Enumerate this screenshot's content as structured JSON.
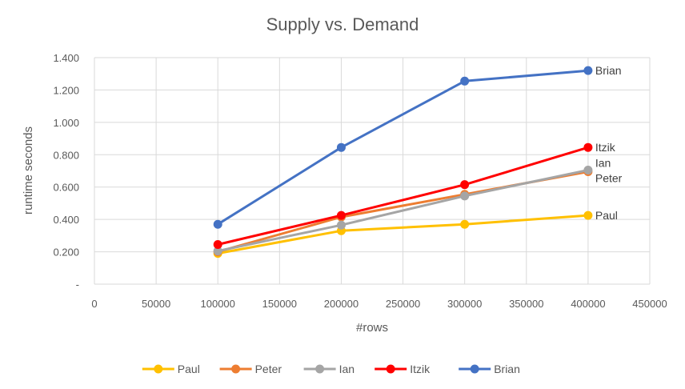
{
  "chart_data": {
    "type": "line",
    "title": "Supply vs. Demand",
    "xlabel": "#rows",
    "ylabel": "runtime seconds",
    "xlim": [
      0,
      450000
    ],
    "ylim": [
      0,
      1.4
    ],
    "x_ticks": [
      "0",
      "50000",
      "100000",
      "150000",
      "200000",
      "250000",
      "300000",
      "350000",
      "400000",
      "450000"
    ],
    "y_ticks": [
      "-",
      "0.200",
      "0.400",
      "0.600",
      "0.800",
      "1.000",
      "1.200",
      "1.400"
    ],
    "grid": true,
    "legend_position": "bottom",
    "x": [
      100000,
      200000,
      300000,
      400000
    ],
    "series": [
      {
        "name": "Paul",
        "color": "#FFC000",
        "values": [
          0.19,
          0.33,
          0.37,
          0.425
        ],
        "end_label": "Paul"
      },
      {
        "name": "Peter",
        "color": "#ED7D31",
        "values": [
          0.2,
          0.415,
          0.555,
          0.695
        ],
        "end_label": "Peter"
      },
      {
        "name": "Ian",
        "color": "#A5A5A5",
        "values": [
          0.205,
          0.365,
          0.545,
          0.705
        ],
        "end_label": "Ian"
      },
      {
        "name": "Itzik",
        "color": "#FF0000",
        "values": [
          0.245,
          0.425,
          0.615,
          0.845
        ],
        "end_label": "Itzik"
      },
      {
        "name": "Brian",
        "color": "#4472C4",
        "values": [
          0.37,
          0.845,
          1.255,
          1.32
        ],
        "end_label": "Brian"
      }
    ]
  }
}
